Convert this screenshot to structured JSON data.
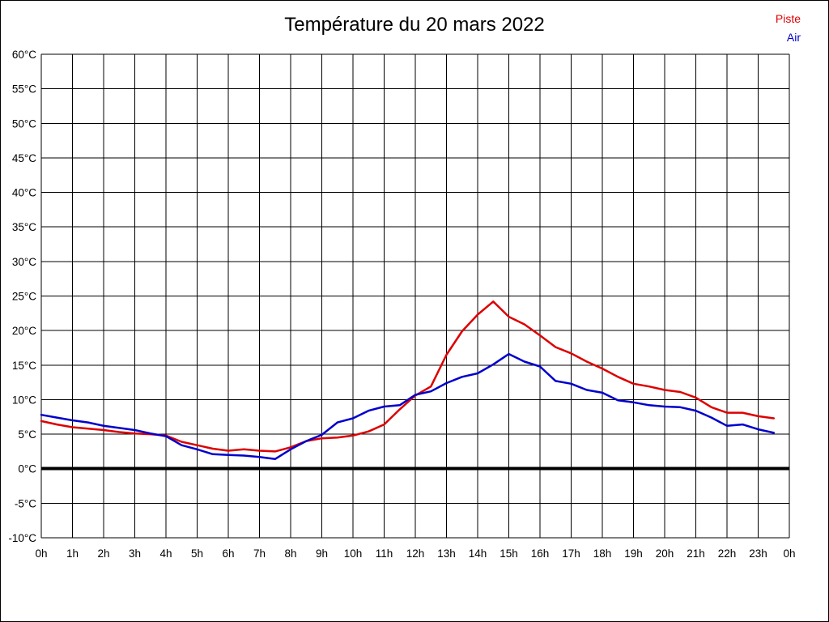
{
  "legend": [
    {
      "label": "Piste",
      "color": "#dd0000"
    },
    {
      "label": "Air",
      "color": "#0000cc"
    }
  ],
  "chart_data": {
    "type": "line",
    "title": "Température du 20 mars 2022",
    "xlabel": "",
    "ylabel": "",
    "xlim": [
      0,
      24
    ],
    "ylim": [
      -10,
      60
    ],
    "grid": true,
    "zero_line": true,
    "legend_position": "top-right",
    "x_unit": "hour of day",
    "y_unit": "°C",
    "x_ticks": [
      {
        "value": 0,
        "label": "0h"
      },
      {
        "value": 1,
        "label": "1h"
      },
      {
        "value": 2,
        "label": "2h"
      },
      {
        "value": 3,
        "label": "3h"
      },
      {
        "value": 4,
        "label": "4h"
      },
      {
        "value": 5,
        "label": "5h"
      },
      {
        "value": 6,
        "label": "6h"
      },
      {
        "value": 7,
        "label": "7h"
      },
      {
        "value": 8,
        "label": "8h"
      },
      {
        "value": 9,
        "label": "9h"
      },
      {
        "value": 10,
        "label": "10h"
      },
      {
        "value": 11,
        "label": "11h"
      },
      {
        "value": 12,
        "label": "12h"
      },
      {
        "value": 13,
        "label": "13h"
      },
      {
        "value": 14,
        "label": "14h"
      },
      {
        "value": 15,
        "label": "15h"
      },
      {
        "value": 16,
        "label": "16h"
      },
      {
        "value": 17,
        "label": "17h"
      },
      {
        "value": 18,
        "label": "18h"
      },
      {
        "value": 19,
        "label": "19h"
      },
      {
        "value": 20,
        "label": "20h"
      },
      {
        "value": 21,
        "label": "21h"
      },
      {
        "value": 22,
        "label": "22h"
      },
      {
        "value": 23,
        "label": "23h"
      },
      {
        "value": 24,
        "label": "0h"
      }
    ],
    "y_ticks": [
      {
        "value": 60,
        "label": "60°C"
      },
      {
        "value": 55,
        "label": "55°C"
      },
      {
        "value": 50,
        "label": "50°C"
      },
      {
        "value": 45,
        "label": "45°C"
      },
      {
        "value": 40,
        "label": "40°C"
      },
      {
        "value": 35,
        "label": "35°C"
      },
      {
        "value": 30,
        "label": "30°C"
      },
      {
        "value": 25,
        "label": "25°C"
      },
      {
        "value": 20,
        "label": "20°C"
      },
      {
        "value": 15,
        "label": "15°C"
      },
      {
        "value": 10,
        "label": "10°C"
      },
      {
        "value": 5,
        "label": "5°C"
      },
      {
        "value": 0,
        "label": "0°C"
      },
      {
        "value": -5,
        "label": "-5°C"
      },
      {
        "value": -10,
        "label": "-10°C"
      }
    ],
    "x": [
      0,
      0.5,
      1,
      1.5,
      2,
      2.5,
      3,
      3.5,
      4,
      4.5,
      5,
      5.5,
      6,
      6.5,
      7,
      7.5,
      8,
      8.5,
      9,
      9.5,
      10,
      10.5,
      11,
      11.5,
      12,
      12.5,
      13,
      13.5,
      14,
      14.5,
      15,
      15.5,
      16,
      16.5,
      17,
      17.5,
      18,
      18.5,
      19,
      19.5,
      20,
      20.5,
      21,
      21.5,
      22,
      22.5,
      23,
      23.5
    ],
    "series": [
      {
        "name": "Piste",
        "color": "#dd0000",
        "values": [
          6.9,
          6.4,
          6.0,
          5.8,
          5.6,
          5.3,
          5.1,
          5.0,
          4.8,
          3.9,
          3.4,
          2.9,
          2.6,
          2.8,
          2.6,
          2.5,
          3.1,
          4.0,
          4.4,
          4.5,
          4.8,
          5.4,
          6.4,
          8.6,
          10.6,
          11.9,
          16.5,
          19.9,
          22.3,
          24.2,
          22.0,
          20.9,
          19.3,
          17.6,
          16.7,
          15.5,
          14.5,
          13.3,
          12.3,
          11.9,
          11.4,
          11.1,
          10.3,
          8.9,
          8.1,
          8.1,
          7.6,
          7.3
        ]
      },
      {
        "name": "Air",
        "color": "#0000cc",
        "values": [
          7.8,
          7.4,
          7.0,
          6.7,
          6.2,
          5.9,
          5.6,
          5.1,
          4.7,
          3.4,
          2.8,
          2.1,
          2.0,
          1.9,
          1.7,
          1.4,
          2.8,
          4.0,
          4.9,
          6.7,
          7.3,
          8.4,
          9.0,
          9.2,
          10.7,
          11.2,
          12.4,
          13.3,
          13.8,
          15.1,
          16.6,
          15.5,
          14.8,
          12.7,
          12.3,
          11.4,
          11.0,
          9.9,
          9.6,
          9.2,
          9.0,
          8.9,
          8.4,
          7.4,
          6.2,
          6.4,
          5.7,
          5.2
        ]
      }
    ]
  }
}
